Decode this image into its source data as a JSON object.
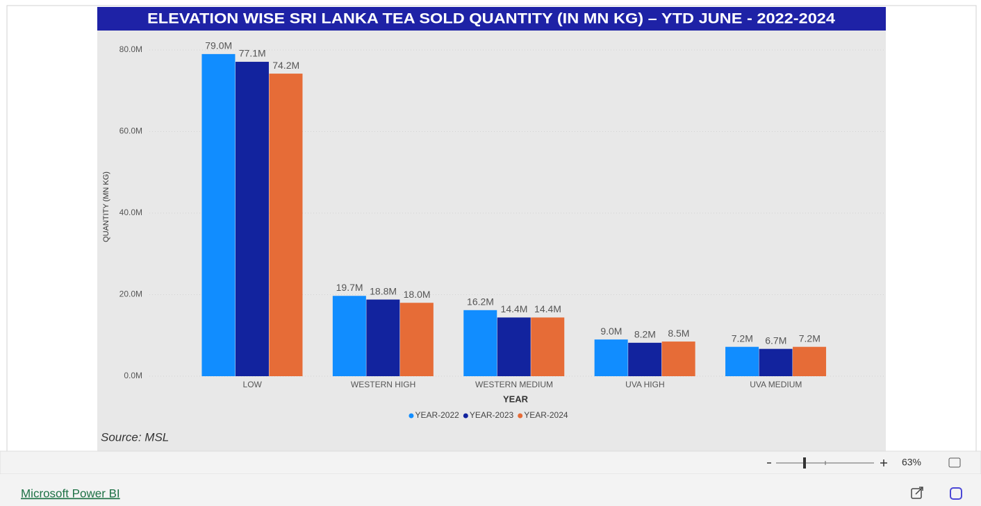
{
  "chart_data": {
    "type": "bar",
    "title": "ELEVATION WISE SRI LANKA TEA SOLD QUANTITY (IN MN KG) – YTD JUNE - 2022-2024",
    "x_label": "YEAR",
    "y_label": "QUANTITY (MN KG)",
    "categories": [
      "LOW",
      "WESTERN HIGH",
      "WESTERN MEDIUM",
      "UVA HIGH",
      "UVA MEDIUM"
    ],
    "series": [
      {
        "name": "YEAR-2022",
        "color": "#118dff",
        "values": [
          79000000,
          19700000,
          16200000,
          9000000,
          7200000
        ],
        "value_labels": [
          "79.0M",
          "19.7M",
          "16.2M",
          "9.0M",
          "7.2M"
        ]
      },
      {
        "name": "YEAR-2023",
        "color": "#12239e",
        "values": [
          77100000,
          18800000,
          14400000,
          8200000,
          6700000
        ],
        "value_labels": [
          "77.1M",
          "18.8M",
          "14.4M",
          "8.2M",
          "6.7M"
        ]
      },
      {
        "name": "YEAR-2024",
        "color": "#e66c37",
        "values": [
          74200000,
          18000000,
          14400000,
          8500000,
          7200000
        ],
        "value_labels": [
          "74.2M",
          "18.0M",
          "14.4M",
          "8.5M",
          "7.2M"
        ]
      }
    ],
    "ylim": [
      0,
      80000000
    ],
    "yticks": [
      {
        "value": 0,
        "label": "0.0M"
      },
      {
        "value": 20000000,
        "label": "20.0M"
      },
      {
        "value": 40000000,
        "label": "40.0M"
      },
      {
        "value": 60000000,
        "label": "60.0M"
      },
      {
        "value": 80000000,
        "label": "80.0M"
      }
    ],
    "grid": true,
    "legend": "bottom",
    "source": "Source: MSL"
  },
  "toolbar": {
    "zoom": "63%"
  },
  "footer": {
    "link": "Microsoft Power BI"
  }
}
